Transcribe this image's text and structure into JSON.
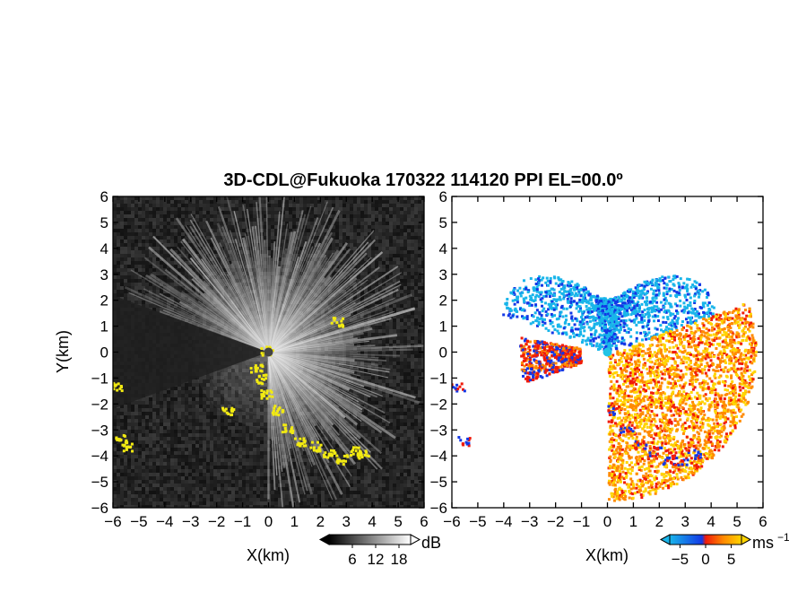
{
  "title": "3D-CDL@Fukuoka 170322 114120 PPI EL=00.0º",
  "colors": {
    "background": "#ffffff",
    "frame": "#000000",
    "snr_bg_dark": "#202020",
    "snr_bright": "#e6e6e6",
    "hard_target": "#f2ea12",
    "vel_negative": "#19b5ea",
    "vel_negative_strong": "#1338e6",
    "vel_positive_low": "#f01a0a",
    "vel_positive_mid": "#ff8a00",
    "vel_positive_high": "#ffd400",
    "center_marker": "#22c3e6"
  },
  "chart_data": [
    {
      "type": "heatmap",
      "panel": "SNR",
      "xlabel": "X(km)",
      "ylabel": "Y(km)",
      "xlim": [
        -6,
        6
      ],
      "ylim": [
        -6,
        6
      ],
      "xticks": [
        "−6",
        "−5",
        "−4",
        "−3",
        "−2",
        "−1",
        "0",
        "1",
        "2",
        "3",
        "4",
        "5",
        "6"
      ],
      "yticks": [
        "6",
        "5",
        "4",
        "3",
        "2",
        "1",
        "0",
        "−1",
        "−2",
        "−3",
        "−4",
        "−5",
        "−6"
      ],
      "colorbar": {
        "unit": "dB",
        "ticks": [
          "6",
          "12",
          "18"
        ],
        "range": [
          0,
          21
        ]
      },
      "bright_sector_deg": [
        -90,
        160
      ],
      "blocked_sector_deg": [
        160,
        200
      ],
      "hard_target_color": "yellow"
    },
    {
      "type": "heatmap",
      "panel": "Doppler velocity",
      "xlabel": "X(km)",
      "xlim": [
        -6,
        6
      ],
      "ylim": [
        -6,
        6
      ],
      "xticks": [
        "−6",
        "−5",
        "−4",
        "−3",
        "−2",
        "−1",
        "0",
        "1",
        "2",
        "3",
        "4",
        "5",
        "6"
      ],
      "yticks": [
        "6",
        "5",
        "4",
        "3",
        "2",
        "1",
        "0",
        "−1",
        "−2",
        "−3",
        "−4",
        "−5",
        "−6"
      ],
      "colorbar": {
        "unit": "ms",
        "unit_exponent": "−1",
        "ticks": [
          "−5",
          "0",
          "5"
        ],
        "range": [
          -7,
          7
        ]
      },
      "negative_velocity_sector_deg": [
        20,
        160
      ],
      "positive_velocity_sector_deg": [
        -90,
        20
      ]
    }
  ]
}
